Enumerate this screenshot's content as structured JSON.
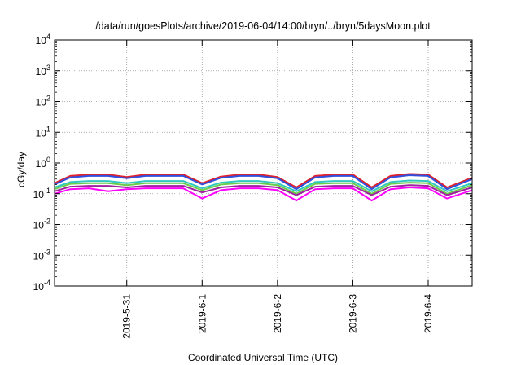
{
  "chart_data": {
    "type": "line",
    "title": "/data/run/goesPlots/archive/2019-06-04/14:00/bryn/../bryn/5daysMoon.plot",
    "xlabel": "Coordinated Universal Time (UTC)",
    "ylabel": "cGy/day",
    "yscale": "log",
    "ylim": [
      0.0001,
      10000
    ],
    "xlim": [
      "2019-05-30 01:00",
      "2019-06-04 14:00"
    ],
    "grid": true,
    "x_ticks": [
      "2019-5-31",
      "2019-6-1",
      "2019-6-2",
      "2019-6-3",
      "2019-6-4"
    ],
    "y_ticks": [
      {
        "base": "10",
        "exp": "-4"
      },
      {
        "base": "10",
        "exp": "-3"
      },
      {
        "base": "10",
        "exp": "-2"
      },
      {
        "base": "10",
        "exp": "-1"
      },
      {
        "base": "10",
        "exp": "0"
      },
      {
        "base": "10",
        "exp": "1"
      },
      {
        "base": "10",
        "exp": "2"
      },
      {
        "base": "10",
        "exp": "3"
      },
      {
        "base": "10",
        "exp": "4"
      }
    ],
    "x": [
      "2019-05-30 01:00",
      "2019-05-30 06:00",
      "2019-05-30 12:00",
      "2019-05-30 18:00",
      "2019-05-31 00:00",
      "2019-05-31 06:00",
      "2019-05-31 12:00",
      "2019-05-31 18:00",
      "2019-06-01 00:00",
      "2019-06-01 06:00",
      "2019-06-01 12:00",
      "2019-06-01 18:00",
      "2019-06-02 00:00",
      "2019-06-02 06:00",
      "2019-06-02 12:00",
      "2019-06-02 18:00",
      "2019-06-03 00:00",
      "2019-06-03 06:00",
      "2019-06-03 12:00",
      "2019-06-03 18:00",
      "2019-06-04 00:00",
      "2019-06-04 06:00",
      "2019-06-04 14:00"
    ],
    "series": [
      {
        "color": "#e0202a",
        "values": [
          0.22,
          0.38,
          0.42,
          0.42,
          0.35,
          0.42,
          0.42,
          0.42,
          0.22,
          0.36,
          0.42,
          0.42,
          0.35,
          0.16,
          0.38,
          0.42,
          0.42,
          0.16,
          0.38,
          0.44,
          0.42,
          0.16,
          0.33
        ]
      },
      {
        "color": "#3050e0",
        "values": [
          0.2,
          0.34,
          0.38,
          0.38,
          0.32,
          0.38,
          0.38,
          0.38,
          0.2,
          0.33,
          0.38,
          0.38,
          0.32,
          0.14,
          0.34,
          0.38,
          0.38,
          0.14,
          0.34,
          0.4,
          0.38,
          0.14,
          0.3
        ]
      },
      {
        "color": "#30c8c0",
        "values": [
          0.16,
          0.24,
          0.26,
          0.26,
          0.22,
          0.26,
          0.26,
          0.26,
          0.15,
          0.23,
          0.26,
          0.26,
          0.22,
          0.12,
          0.24,
          0.26,
          0.26,
          0.12,
          0.24,
          0.27,
          0.26,
          0.12,
          0.22
        ]
      },
      {
        "color": "#6acd4a",
        "values": [
          0.14,
          0.21,
          0.22,
          0.22,
          0.19,
          0.22,
          0.22,
          0.22,
          0.13,
          0.2,
          0.22,
          0.22,
          0.19,
          0.1,
          0.21,
          0.22,
          0.22,
          0.1,
          0.21,
          0.23,
          0.22,
          0.1,
          0.19
        ]
      },
      {
        "color": "#a020a0",
        "values": [
          0.12,
          0.17,
          0.18,
          0.18,
          0.16,
          0.18,
          0.18,
          0.18,
          0.11,
          0.16,
          0.18,
          0.18,
          0.16,
          0.09,
          0.17,
          0.18,
          0.18,
          0.09,
          0.17,
          0.19,
          0.18,
          0.09,
          0.16
        ]
      },
      {
        "color": "#ff00ff",
        "values": [
          0.1,
          0.14,
          0.15,
          0.12,
          0.14,
          0.15,
          0.15,
          0.15,
          0.07,
          0.13,
          0.15,
          0.15,
          0.13,
          0.06,
          0.14,
          0.15,
          0.15,
          0.06,
          0.14,
          0.16,
          0.15,
          0.07,
          0.13
        ]
      }
    ]
  }
}
